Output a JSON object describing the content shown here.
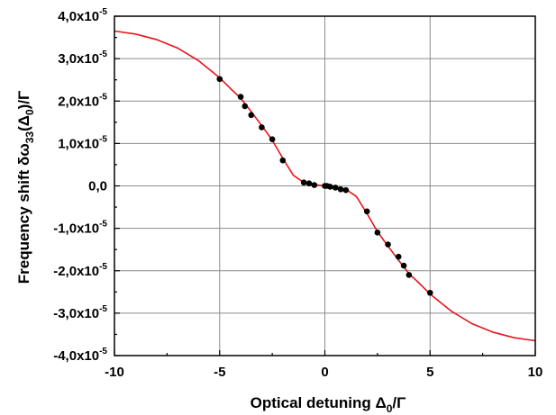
{
  "chart_data": {
    "type": "scatter",
    "xlabel": {
      "main": "Optical detuning Δ",
      "sub": "0",
      "tail": "/Γ"
    },
    "ylabel": {
      "main": "Frequency shift δω",
      "sub": "33",
      "mid": "(Δ",
      "sub2": "0",
      "tail": ")/Γ"
    },
    "xlim": [
      -10,
      10
    ],
    "ylim": [
      -4e-05,
      4e-05
    ],
    "grid": true,
    "x_ticks": [
      {
        "value": -10,
        "label": "-10"
      },
      {
        "value": -5,
        "label": "-5"
      },
      {
        "value": 0,
        "label": "0"
      },
      {
        "value": 5,
        "label": "5"
      },
      {
        "value": 10,
        "label": "10"
      }
    ],
    "y_ticks": [
      {
        "value": 4e-05,
        "mant": "4,0x10",
        "exp": "-5"
      },
      {
        "value": 3e-05,
        "mant": "3,0x10",
        "exp": "-5"
      },
      {
        "value": 2e-05,
        "mant": "2,0x10",
        "exp": "-5"
      },
      {
        "value": 1e-05,
        "mant": "1,0x10",
        "exp": "-5"
      },
      {
        "value": 0,
        "mant": "0,0",
        "exp": ""
      },
      {
        "value": -1e-05,
        "mant": "-1,0x10",
        "exp": "-5"
      },
      {
        "value": -2e-05,
        "mant": "-2,0x10",
        "exp": "-5"
      },
      {
        "value": -3e-05,
        "mant": "-3,0x10",
        "exp": "-5"
      },
      {
        "value": -4e-05,
        "mant": "-4,0x10",
        "exp": "-5"
      }
    ],
    "series": [
      {
        "kind": "line",
        "color": "#e8141a",
        "x": [
          -10,
          -9,
          -8,
          -7,
          -6,
          -5,
          -4.5,
          -4,
          -3.5,
          -3,
          -2.5,
          -2,
          -1.5,
          -1,
          -0.5,
          0,
          0.5,
          1,
          1.5,
          2,
          2.5,
          3,
          3.5,
          4,
          4.5,
          5,
          6,
          7,
          8,
          9,
          10
        ],
        "y": [
          3.65e-05,
          3.58e-05,
          3.45e-05,
          3.25e-05,
          2.95e-05,
          2.55e-05,
          2.3e-05,
          2.07e-05,
          1.75e-05,
          1.42e-05,
          1.08e-05,
          6.5e-06,
          2.5e-06,
          8e-07,
          3e-07,
          0.0,
          -3e-07,
          -8e-07,
          -2.5e-06,
          -6.5e-06,
          -1.08e-05,
          -1.42e-05,
          -1.75e-05,
          -2.07e-05,
          -2.3e-05,
          -2.55e-05,
          -2.95e-05,
          -3.25e-05,
          -3.45e-05,
          -3.58e-05,
          -3.65e-05
        ]
      },
      {
        "kind": "scatter",
        "color": "#000000",
        "x": [
          -5,
          -4,
          -3.8,
          -3.5,
          -3,
          -2.5,
          -2,
          -1,
          -0.75,
          -0.5,
          0,
          0.1,
          0.25,
          0.5,
          0.75,
          1,
          2,
          2.5,
          3,
          3.5,
          3.75,
          4,
          5
        ],
        "y": [
          2.52e-05,
          2.1e-05,
          1.88e-05,
          1.67e-05,
          1.38e-05,
          1.1e-05,
          6e-06,
          8e-07,
          6e-07,
          2e-07,
          0.0,
          0.0,
          -2e-07,
          -4e-07,
          -8e-07,
          -1e-06,
          -6e-06,
          -1.1e-05,
          -1.38e-05,
          -1.67e-05,
          -1.88e-05,
          -2.1e-05,
          -2.52e-05
        ]
      }
    ]
  }
}
